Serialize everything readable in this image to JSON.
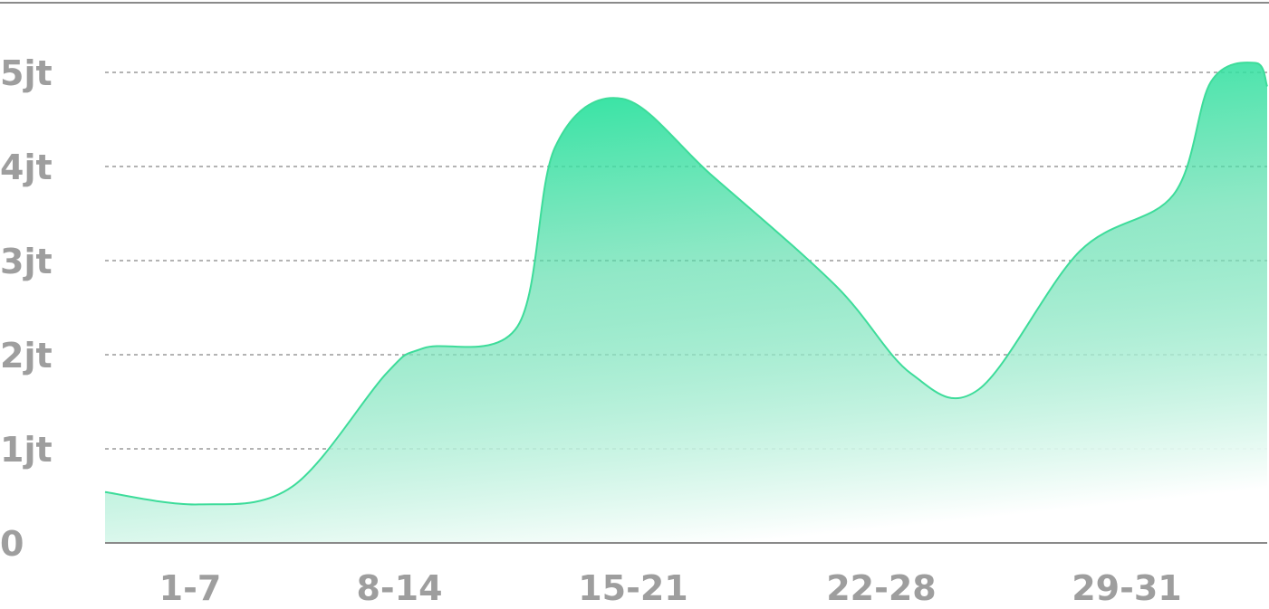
{
  "chart_data": {
    "type": "area",
    "title": "",
    "xlabel": "",
    "ylabel": "",
    "categories": [
      "1-7",
      "8-14",
      "15-21",
      "22-28",
      "29-31"
    ],
    "y_ticks": [
      0,
      1,
      2,
      3,
      4,
      5
    ],
    "y_tick_labels": [
      "0",
      "1jt",
      "2jt",
      "3jt",
      "4jt",
      "5jt"
    ],
    "ylim": [
      0,
      5
    ],
    "xlim": [
      0,
      31
    ],
    "grid": true,
    "legend": "none",
    "colors": {
      "line": "#3ddc9a",
      "fill_top": "#1ee39b",
      "fill_bottom": "#ffffff"
    },
    "series": [
      {
        "values": [
          {
            "x": 0,
            "y": 0.54
          },
          {
            "x": 2.5,
            "y": 0.41
          },
          {
            "x": 5,
            "y": 0.6
          },
          {
            "x": 7.5,
            "y": 1.8
          },
          {
            "x": 8.5,
            "y": 2.07
          },
          {
            "x": 11,
            "y": 2.3
          },
          {
            "x": 12,
            "y": 4.2
          },
          {
            "x": 13.8,
            "y": 4.72
          },
          {
            "x": 16.2,
            "y": 3.9
          },
          {
            "x": 19.5,
            "y": 2.73
          },
          {
            "x": 21.5,
            "y": 1.8
          },
          {
            "x": 23.3,
            "y": 1.63
          },
          {
            "x": 26,
            "y": 3.1
          },
          {
            "x": 28.5,
            "y": 3.7
          },
          {
            "x": 29.5,
            "y": 4.9
          },
          {
            "x": 30.7,
            "y": 5.1
          },
          {
            "x": 31,
            "y": 4.85
          }
        ]
      }
    ]
  }
}
